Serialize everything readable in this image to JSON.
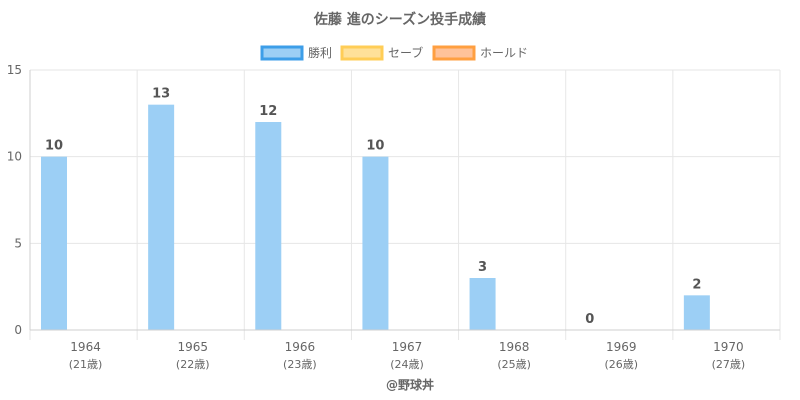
{
  "chart_data": {
    "type": "bar",
    "title": "佐藤 進のシーズン投手成績",
    "categories": [
      "1964",
      "1965",
      "1966",
      "1967",
      "1968",
      "1969",
      "1970"
    ],
    "category_sublabels": [
      "(21歳)",
      "(22歳)",
      "(23歳)",
      "(24歳)",
      "(25歳)",
      "(26歳)",
      "(27歳)"
    ],
    "series": [
      {
        "name": "勝利",
        "values": [
          10,
          13,
          12,
          10,
          3,
          0,
          2
        ],
        "color": "#9ccff5",
        "border": "#3d9ee8"
      },
      {
        "name": "セーブ",
        "values": [
          0,
          0,
          0,
          0,
          0,
          0,
          0
        ],
        "color": "#ffe199",
        "border": "#ffcd56"
      },
      {
        "name": "ホールド",
        "values": [
          0,
          0,
          0,
          0,
          0,
          0,
          0
        ],
        "color": "#ffc299",
        "border": "#ff9f40"
      }
    ],
    "data_labels": [
      "10",
      "13",
      "12",
      "10",
      "3",
      "0",
      "2"
    ],
    "ylim": [
      0,
      15
    ],
    "yticks": [
      0,
      5,
      10,
      15
    ],
    "grid": true,
    "legend_position": "top"
  },
  "credit": "@野球丼"
}
